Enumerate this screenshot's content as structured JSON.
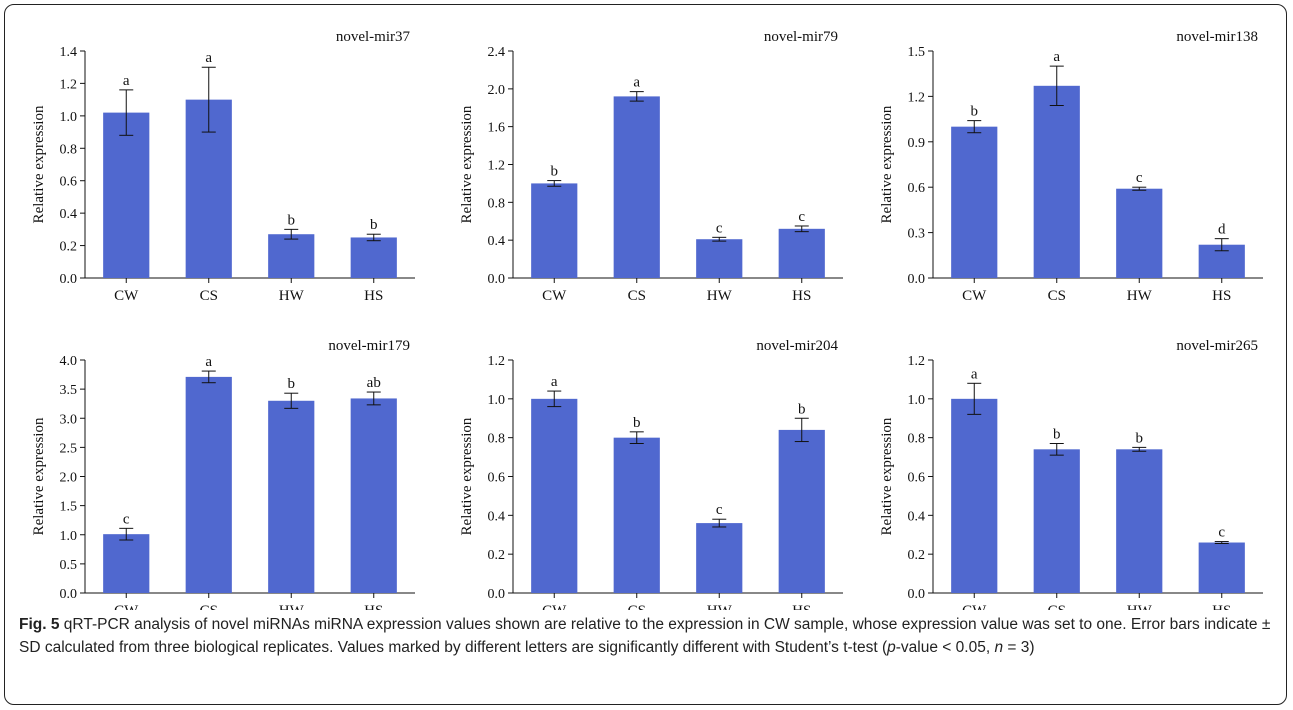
{
  "chart_data": [
    {
      "type": "bar",
      "title": "novel-mir37",
      "ylabel": "Relative expression",
      "categories": [
        "CW",
        "CS",
        "HW",
        "HS"
      ],
      "values": [
        1.02,
        1.1,
        0.27,
        0.25
      ],
      "errors": [
        0.14,
        0.2,
        0.03,
        0.02
      ],
      "letters": [
        "a",
        "a",
        "b",
        "b"
      ],
      "ylim": [
        0,
        1.4
      ],
      "yticks": [
        "0.0",
        "0.2",
        "0.4",
        "0.6",
        "0.8",
        "1.0",
        "1.2",
        "1.4"
      ],
      "color": "#5068cf"
    },
    {
      "type": "bar",
      "title": "novel-mir79",
      "ylabel": "Relative expression",
      "categories": [
        "CW",
        "CS",
        "HW",
        "HS"
      ],
      "values": [
        1.0,
        1.92,
        0.41,
        0.52
      ],
      "errors": [
        0.03,
        0.05,
        0.02,
        0.03
      ],
      "letters": [
        "b",
        "a",
        "c",
        "c"
      ],
      "ylim": [
        0,
        2.4
      ],
      "yticks": [
        "0.0",
        "0.4",
        "0.8",
        "1.2",
        "1.6",
        "2.0",
        "2.4"
      ],
      "color": "#5068cf"
    },
    {
      "type": "bar",
      "title": "novel-mir138",
      "ylabel": "Relative expression",
      "categories": [
        "CW",
        "CS",
        "HW",
        "HS"
      ],
      "values": [
        1.0,
        1.27,
        0.59,
        0.22
      ],
      "errors": [
        0.04,
        0.13,
        0.01,
        0.04
      ],
      "letters": [
        "b",
        "a",
        "c",
        "d"
      ],
      "ylim": [
        0,
        1.5
      ],
      "yticks": [
        "0.0",
        "0.3",
        "0.6",
        "0.9",
        "1.2",
        "1.5"
      ],
      "color": "#5068cf"
    },
    {
      "type": "bar",
      "title": "novel-mir179",
      "ylabel": "Relative expression",
      "categories": [
        "CW",
        "CS",
        "HW",
        "HS"
      ],
      "values": [
        1.01,
        3.71,
        3.3,
        3.34
      ],
      "errors": [
        0.1,
        0.1,
        0.13,
        0.11
      ],
      "letters": [
        "c",
        "a",
        "b",
        "ab"
      ],
      "ylim": [
        0,
        4.0
      ],
      "yticks": [
        "0.0",
        "0.5",
        "1.0",
        "1.5",
        "2.0",
        "2.5",
        "3.0",
        "3.5",
        "4.0"
      ],
      "color": "#5068cf"
    },
    {
      "type": "bar",
      "title": "novel-mir204",
      "ylabel": "Relative expression",
      "categories": [
        "CW",
        "CS",
        "HW",
        "HS"
      ],
      "values": [
        1.0,
        0.8,
        0.36,
        0.84
      ],
      "errors": [
        0.04,
        0.03,
        0.02,
        0.06
      ],
      "letters": [
        "a",
        "b",
        "c",
        "b"
      ],
      "ylim": [
        0,
        1.2
      ],
      "yticks": [
        "0.0",
        "0.2",
        "0.4",
        "0.6",
        "0.8",
        "1.0",
        "1.2"
      ],
      "color": "#5068cf"
    },
    {
      "type": "bar",
      "title": "novel-mir265",
      "ylabel": "Relative expression",
      "categories": [
        "CW",
        "CS",
        "HW",
        "HS"
      ],
      "values": [
        1.0,
        0.74,
        0.74,
        0.26
      ],
      "errors": [
        0.08,
        0.03,
        0.01,
        0.005
      ],
      "letters": [
        "a",
        "b",
        "b",
        "c"
      ],
      "ylim": [
        0,
        1.2
      ],
      "yticks": [
        "0.0",
        "0.2",
        "0.4",
        "0.6",
        "0.8",
        "1.0",
        "1.2"
      ],
      "color": "#5068cf"
    }
  ],
  "caption": {
    "label": "Fig. 5",
    "text": " qRT-PCR analysis of novel miRNAs miRNA expression values shown are relative to the expression in CW sample, whose expression value was set to one. Error bars indicate ± SD calculated from three biological replicates. Values marked by different letters are significantly different with Student’s t-test (",
    "p_symbol": "p",
    "p_text": "-value < 0.05, ",
    "n_symbol": "n",
    "n_text": " = 3)"
  }
}
